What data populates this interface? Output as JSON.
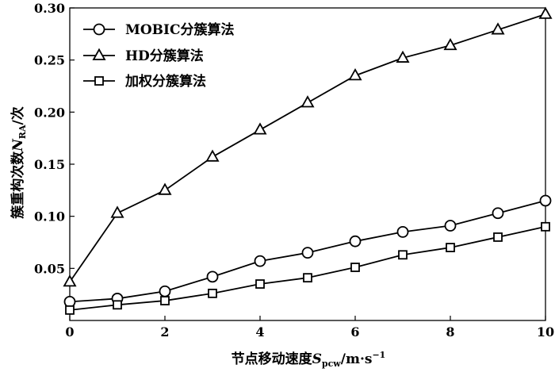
{
  "chart_data": {
    "type": "line",
    "x": [
      0,
      1,
      2,
      3,
      4,
      5,
      6,
      7,
      8,
      9,
      10
    ],
    "series": [
      {
        "name": "MOBIC分簇算法",
        "marker": "circle",
        "values": [
          0.018,
          0.021,
          0.028,
          0.042,
          0.057,
          0.065,
          0.076,
          0.085,
          0.091,
          0.103,
          0.115
        ]
      },
      {
        "name": "HD分簇算法",
        "marker": "triangle",
        "values": [
          0.037,
          0.103,
          0.125,
          0.157,
          0.183,
          0.209,
          0.235,
          0.252,
          0.264,
          0.279,
          0.294
        ]
      },
      {
        "name": "加权分簇算法",
        "marker": "square",
        "values": [
          0.01,
          0.015,
          0.019,
          0.026,
          0.035,
          0.041,
          0.051,
          0.063,
          0.07,
          0.08,
          0.09
        ]
      }
    ],
    "xlim": [
      0,
      10
    ],
    "ylim": [
      0,
      0.3
    ],
    "xticks": [
      "0",
      "2",
      "4",
      "6",
      "8",
      "10"
    ],
    "yticks": [
      "0.05",
      "0.10",
      "0.15",
      "0.20",
      "0.25",
      "0.30"
    ],
    "xlabel": {
      "main": "节点移动速度",
      "var": "S",
      "sub": "pcw",
      "unit": "/m·s",
      "sup": "−1"
    },
    "ylabel": {
      "main": "簇重构次数",
      "var": "N",
      "sub": "RA",
      "unit": "/次"
    },
    "legend_position": "top-left",
    "grid": false,
    "line_color": "#000000"
  }
}
